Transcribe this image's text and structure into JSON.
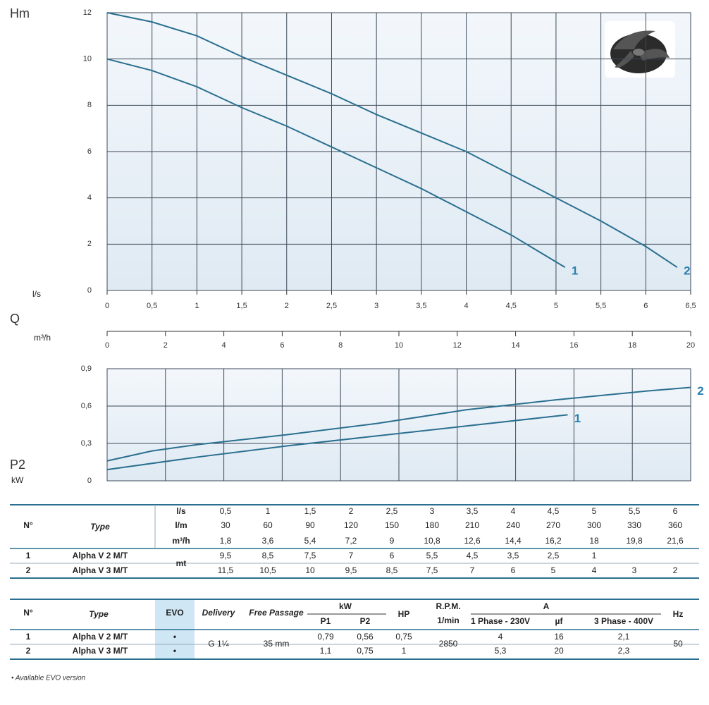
{
  "chart_data": [
    {
      "type": "line",
      "ylabel": "Hm",
      "xlabel": "l/s",
      "qlabel": "Q",
      "x2label": "m³/h",
      "xlim": [
        0,
        6.5
      ],
      "xticks": [
        0,
        {
          "value": 0.5,
          "label": "0,5"
        },
        1,
        {
          "value": 1.5,
          "label": "1,5"
        },
        2,
        {
          "value": 2.5,
          "label": "2,5"
        },
        3,
        {
          "value": 3.5,
          "label": "3,5"
        },
        4,
        {
          "value": 4.5,
          "label": "4,5"
        },
        5,
        {
          "value": 5.5,
          "label": "5,5"
        },
        6,
        {
          "value": 6.5,
          "label": "6,5"
        }
      ],
      "ylim": [
        0,
        12
      ],
      "yticks": [
        0,
        2,
        4,
        6,
        8,
        10,
        12
      ],
      "x2lim": [
        0,
        20
      ],
      "x2ticks": [
        0,
        2,
        4,
        6,
        8,
        10,
        12,
        14,
        16,
        18,
        20
      ],
      "grid": true,
      "series": [
        {
          "name": "1",
          "color": "#2a6f8f",
          "x": [
            0,
            0.5,
            1,
            1.5,
            2,
            2.5,
            3,
            3.5,
            4,
            4.5,
            5.1
          ],
          "values": [
            10,
            9.5,
            8.8,
            7.9,
            7.1,
            6.2,
            5.3,
            4.4,
            3.4,
            2.4,
            1.0
          ]
        },
        {
          "name": "2",
          "color": "#2a6f8f",
          "x": [
            0,
            0.5,
            1,
            1.5,
            2,
            2.5,
            3,
            3.5,
            4,
            4.5,
            5,
            5.5,
            6,
            6.35
          ],
          "values": [
            12,
            11.6,
            11.0,
            10.1,
            9.3,
            8.5,
            7.6,
            6.8,
            6.0,
            5.0,
            4.0,
            3.0,
            1.9,
            1.0
          ]
        }
      ]
    },
    {
      "type": "line",
      "ylabel": "P2",
      "yunit": "kW",
      "xlim": [
        0,
        6.5
      ],
      "ylim": [
        0,
        0.9
      ],
      "yticks": [
        0,
        {
          "value": 0.3,
          "label": "0,3"
        },
        {
          "value": 0.6,
          "label": "0,6"
        },
        {
          "value": 0.9,
          "label": "0,9"
        }
      ],
      "grid": true,
      "series": [
        {
          "name": "1",
          "color": "#2a6f8f",
          "x": [
            0,
            1,
            2,
            3,
            4,
            5.13
          ],
          "values": [
            0.09,
            0.19,
            0.28,
            0.36,
            0.44,
            0.53
          ]
        },
        {
          "name": "2",
          "color": "#2a6f8f",
          "x": [
            0,
            0.5,
            1,
            2,
            3,
            4,
            5,
            6,
            6.5
          ],
          "values": [
            0.16,
            0.24,
            0.29,
            0.37,
            0.46,
            0.57,
            0.65,
            0.72,
            0.75
          ]
        }
      ]
    }
  ],
  "table1": {
    "n": "N°",
    "type": "Type",
    "units": [
      "l/s",
      "l/m",
      "m³/h"
    ],
    "flow": [
      [
        "0,5",
        "1",
        "1,5",
        "2",
        "2,5",
        "3",
        "3,5",
        "4",
        "4,5",
        "5",
        "5,5",
        "6"
      ],
      [
        "30",
        "60",
        "90",
        "120",
        "150",
        "180",
        "210",
        "240",
        "270",
        "300",
        "330",
        "360"
      ],
      [
        "1,8",
        "3,6",
        "5,4",
        "7,2",
        "9",
        "10,8",
        "12,6",
        "14,4",
        "16,2",
        "18",
        "19,8",
        "21,6"
      ]
    ],
    "head_unit": "mt",
    "rows": [
      {
        "n": "1",
        "type": "Alpha V 2  M/T",
        "head": [
          "9,5",
          "8,5",
          "7,5",
          "7",
          "6",
          "5,5",
          "4,5",
          "3,5",
          "2,5",
          "1"
        ]
      },
      {
        "n": "2",
        "type": "Alpha V 3  M/T",
        "head": [
          "11,5",
          "10,5",
          "10",
          "9,5",
          "8,5",
          "7,5",
          "7",
          "6",
          "5",
          "4",
          "3",
          "2"
        ]
      }
    ]
  },
  "table2": {
    "headers": {
      "n": "N°",
      "type": "Type",
      "evo": "EVO",
      "delivery": "Delivery",
      "passage": "Free Passage",
      "kw": "kW",
      "p1": "P1",
      "p2": "P2",
      "hp": "HP",
      "rpm": "R.P.M.",
      "rpm_unit": "1/min",
      "a": "A",
      "phase1": "1 Phase - 230V",
      "uf": "µf",
      "phase3": "3 Phase - 400V",
      "hz": "Hz"
    },
    "delivery": "G 1¼",
    "passage": "35 mm",
    "rpm": "2850",
    "hz": "50",
    "rows": [
      {
        "n": "1",
        "type": "Alpha V 2  M/T",
        "evo": "•",
        "p1": "0,79",
        "p2": "0,56",
        "hp": "0,75",
        "phase1": "4",
        "uf": "16",
        "phase3": "2,1"
      },
      {
        "n": "2",
        "type": "Alpha V 3  M/T",
        "evo": "•",
        "p1": "1,1",
        "p2": "0,75",
        "hp": "1",
        "phase1": "5,3",
        "uf": "20",
        "phase3": "2,3"
      }
    ]
  },
  "footnote": "• Available EVO version"
}
